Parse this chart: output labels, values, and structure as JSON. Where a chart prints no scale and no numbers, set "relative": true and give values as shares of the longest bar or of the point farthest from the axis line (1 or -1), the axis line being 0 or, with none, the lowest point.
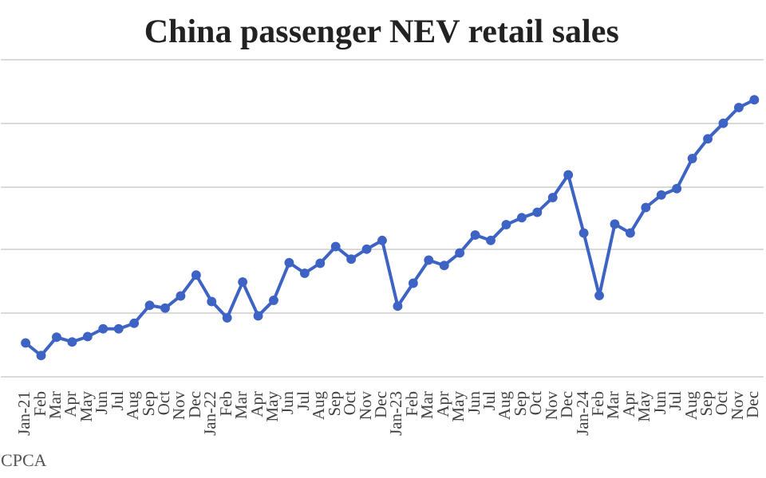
{
  "chart_data": {
    "type": "line",
    "title": "China passenger NEV retail sales",
    "relative": true,
    "grid": "y",
    "marker": "circle",
    "line_style": "solid",
    "categories": [
      "Jan-21",
      "Feb",
      "Mar",
      "Apr",
      "May",
      "Jun",
      "Jul",
      "Aug",
      "Sep",
      "Oct",
      "Nov",
      "Dec",
      "Jan-22",
      "Feb",
      "Mar",
      "Apr",
      "May",
      "Jun",
      "Jul",
      "Aug",
      "Sep",
      "Oct",
      "Nov",
      "Dec",
      "Jan-23",
      "Feb",
      "Mar",
      "Apr",
      "May",
      "Jun",
      "Jul",
      "Aug",
      "Sep",
      "Oct",
      "Nov",
      "Dec",
      "Jan-24",
      "Feb",
      "Mar",
      "Apr",
      "May",
      "Jun",
      "Jul",
      "Aug",
      "Sep",
      "Oct",
      "Nov",
      "Dec"
    ],
    "series": [
      {
        "color": "#3d63c4",
        "values": [
          0.122,
          0.077,
          0.143,
          0.126,
          0.145,
          0.173,
          0.173,
          0.193,
          0.258,
          0.248,
          0.292,
          0.367,
          0.272,
          0.213,
          0.342,
          0.22,
          0.276,
          0.412,
          0.374,
          0.41,
          0.47,
          0.425,
          0.461,
          0.492,
          0.255,
          0.338,
          0.421,
          0.402,
          0.447,
          0.512,
          0.492,
          0.549,
          0.574,
          0.594,
          0.647,
          0.729,
          0.519,
          0.293,
          0.551,
          0.519,
          0.611,
          0.656,
          0.679,
          0.788,
          0.859,
          0.915,
          0.972,
          1
        ]
      }
    ],
    "annotations": [
      "CPCA"
    ]
  }
}
